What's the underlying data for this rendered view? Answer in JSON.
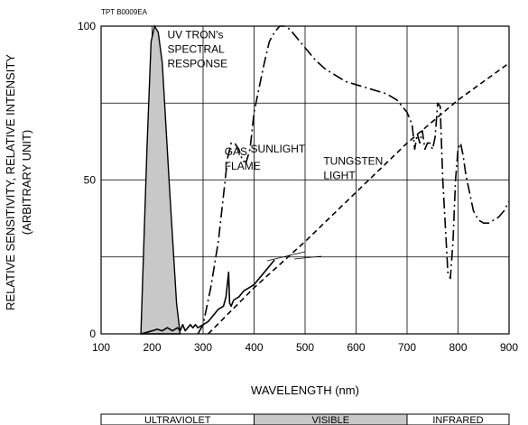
{
  "chart_data": {
    "type": "line",
    "figure_code": "TPT B0009EA",
    "xlabel": "WAVELENGTH (nm)",
    "ylabel_line1": "RELATIVE SENSITIVITY, RELATIVE INTENSITY",
    "ylabel_line2": "(ARBITRARY UNIT)",
    "xlim": [
      100,
      900
    ],
    "ylim": [
      0,
      100
    ],
    "x_ticks": [
      100,
      200,
      300,
      400,
      500,
      600,
      700,
      800,
      900
    ],
    "y_ticks": [
      0,
      50,
      100
    ],
    "grid": true,
    "regions": [
      {
        "label": "ULTRAVIOLET",
        "from": 100,
        "to": 400,
        "fill": "#ffffff"
      },
      {
        "label": "VISIBLE",
        "from": 400,
        "to": 700,
        "fill": "#c8c8c8"
      },
      {
        "label": "INFRARED",
        "from": 700,
        "to": 900,
        "fill": "#ffffff"
      }
    ],
    "annotations": [
      {
        "id": "uv-tron",
        "lines": [
          "UV TRON's",
          "SPECTRAL",
          "RESPONSE"
        ],
        "x": 230,
        "y": 96
      },
      {
        "id": "sunlight",
        "lines": [
          "SUNLIGHT"
        ],
        "x": 393,
        "y": 59
      },
      {
        "id": "gas-flame",
        "lines": [
          "GAS",
          "FLAME"
        ],
        "x": 342,
        "y": 58
      },
      {
        "id": "tungsten",
        "lines": [
          "TUNGSTEN",
          "LIGHT"
        ],
        "x": 536,
        "y": 55
      }
    ],
    "series": [
      {
        "name": "UV TRON's SPECTRAL RESPONSE",
        "style": "filled",
        "fill": "#c8c8c8",
        "x": [
          178,
          190,
          198,
          205,
          212,
          220,
          235,
          248,
          255
        ],
        "y": [
          0,
          60,
          95,
          100,
          98,
          88,
          45,
          10,
          0
        ]
      },
      {
        "name": "SUNLIGHT",
        "style": "dashdot",
        "x": [
          290,
          300,
          315,
          330,
          340,
          348,
          355,
          362,
          370,
          378,
          385,
          392,
          400,
          410,
          420,
          430,
          440,
          450,
          460,
          470,
          485,
          500,
          520,
          540,
          560,
          580,
          600,
          620,
          640,
          660,
          680,
          700,
          710,
          715,
          720,
          725,
          730,
          735,
          740,
          745,
          750,
          755,
          760,
          765,
          770,
          775,
          780,
          785,
          790,
          795,
          800,
          805,
          810,
          815,
          820,
          830,
          840,
          850,
          860,
          870,
          880,
          890,
          900
        ],
        "y": [
          0,
          3,
          15,
          30,
          45,
          57,
          62,
          62,
          60,
          56,
          56,
          60,
          72,
          80,
          88,
          95,
          98,
          100,
          100,
          99,
          96,
          93,
          89,
          86,
          84,
          82,
          81,
          80,
          79,
          78,
          76,
          72,
          68,
          60,
          65,
          62,
          66,
          60,
          62,
          62,
          60,
          64,
          75,
          74,
          50,
          35,
          20,
          18,
          30,
          50,
          60,
          62,
          58,
          52,
          48,
          40,
          37,
          36,
          36,
          37,
          38,
          40,
          43
        ]
      },
      {
        "name": "GAS FLAME",
        "style": "solid",
        "x": [
          178,
          190,
          200,
          210,
          220,
          230,
          240,
          250,
          255,
          260,
          265,
          270,
          275,
          280,
          285,
          290,
          300,
          310,
          320,
          330,
          340,
          345,
          350,
          352,
          355,
          360,
          370,
          380,
          390,
          400,
          410,
          420,
          430,
          440
        ],
        "y": [
          0,
          0.5,
          1,
          1.5,
          1,
          2,
          1,
          2,
          1,
          3,
          1,
          2,
          3,
          2,
          3,
          2,
          3,
          4,
          6,
          8,
          9,
          12,
          20,
          10,
          9,
          11,
          12,
          14,
          15,
          16,
          18,
          20,
          22,
          24
        ]
      },
      {
        "name": "TUNGSTEN LIGHT",
        "style": "dashed",
        "x": [
          310,
          400,
          500,
          600,
          700,
          800,
          900
        ],
        "y": [
          0,
          15,
          30,
          46,
          62,
          76,
          88
        ]
      }
    ]
  }
}
